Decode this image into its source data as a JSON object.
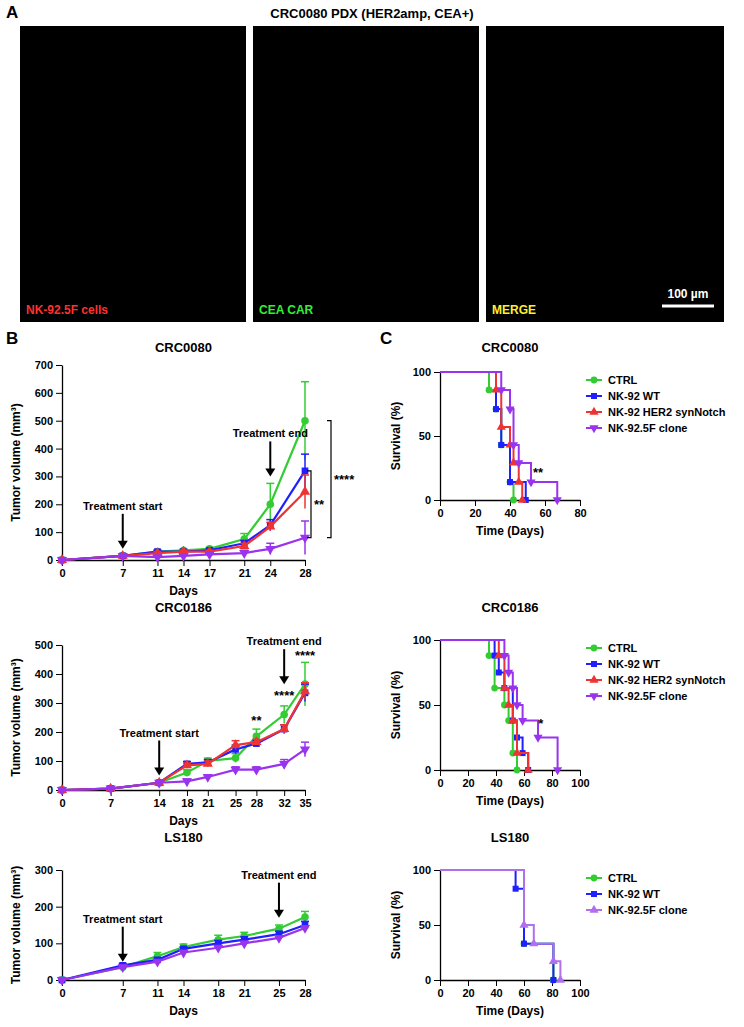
{
  "figure": {
    "panel_labels": [
      "A",
      "B",
      "C"
    ],
    "panel_a": {
      "title": "CRC0080 PDX (HER2amp, CEA+)",
      "images": [
        {
          "label": "NK-92.5F cells",
          "color": "#ff3030"
        },
        {
          "label": "CEA CAR",
          "color": "#33ee33"
        },
        {
          "label": "MERGE",
          "color": "#ffee33"
        }
      ],
      "scale_bar": "100 µm"
    }
  },
  "chart_data": [
    {
      "type": "line",
      "title": "CRC0080",
      "x_label": "Days",
      "y_label": "Tumor volume (mm³)",
      "x": [
        0,
        7,
        11,
        14,
        17,
        21,
        24,
        28
      ],
      "xlim": [
        0,
        28
      ],
      "xticks": [
        0,
        7,
        11,
        14,
        17,
        21,
        24,
        28
      ],
      "ylim": [
        0,
        700
      ],
      "yticks": [
        0,
        100,
        200,
        300,
        400,
        500,
        600,
        700
      ],
      "series": [
        {
          "color": "#33cc33",
          "marker": "circle",
          "values": [
            0,
            15,
            30,
            35,
            40,
            75,
            200,
            500
          ],
          "errors": [
            0,
            3,
            5,
            5,
            5,
            20,
            75,
            140
          ]
        },
        {
          "color": "#1f1fff",
          "marker": "square",
          "values": [
            0,
            15,
            30,
            30,
            35,
            60,
            125,
            320
          ],
          "errors": [
            0,
            3,
            5,
            5,
            5,
            10,
            20,
            60
          ]
        },
        {
          "color": "#ee3333",
          "marker": "triangle",
          "values": [
            0,
            15,
            25,
            30,
            30,
            50,
            120,
            245
          ],
          "errors": [
            0,
            3,
            5,
            5,
            5,
            10,
            15,
            60
          ]
        },
        {
          "color": "#9933ee",
          "marker": "triangle-down",
          "values": [
            0,
            15,
            10,
            15,
            20,
            25,
            40,
            80
          ],
          "errors": [
            0,
            3,
            3,
            3,
            5,
            10,
            20,
            60
          ]
        }
      ],
      "annotations": [
        {
          "type": "arrow",
          "text": "Treatment start",
          "x": 7,
          "y": 40
        },
        {
          "type": "arrow",
          "text": "Treatment end",
          "x": 24,
          "y": 300
        },
        {
          "type": "bracket",
          "text": "**",
          "y": [
            80,
            320
          ]
        },
        {
          "type": "bracket",
          "text": "****",
          "y": [
            80,
            500
          ]
        }
      ]
    },
    {
      "type": "line",
      "title": "CRC0186",
      "x_label": "Days",
      "y_label": "Tumor volume (mm³)",
      "x": [
        0,
        7,
        14,
        18,
        21,
        25,
        28,
        32,
        35
      ],
      "xlim": [
        0,
        35
      ],
      "xticks": [
        0,
        7,
        14,
        18,
        21,
        25,
        28,
        32,
        35
      ],
      "ylim": [
        0,
        500
      ],
      "yticks": [
        0,
        100,
        200,
        300,
        400,
        500
      ],
      "series": [
        {
          "color": "#33cc33",
          "marker": "circle",
          "values": [
            0,
            5,
            25,
            60,
            100,
            110,
            185,
            260,
            365
          ],
          "errors": [
            0,
            2,
            5,
            10,
            10,
            15,
            25,
            30,
            75
          ]
        },
        {
          "color": "#1f1fff",
          "marker": "square",
          "values": [
            0,
            5,
            25,
            90,
            95,
            140,
            160,
            210,
            335
          ],
          "errors": [
            0,
            2,
            5,
            8,
            10,
            15,
            10,
            15,
            30
          ]
        },
        {
          "color": "#ee3333",
          "marker": "triangle",
          "values": [
            0,
            5,
            25,
            85,
            90,
            155,
            165,
            210,
            340
          ],
          "errors": [
            0,
            2,
            5,
            8,
            10,
            15,
            10,
            15,
            30
          ]
        },
        {
          "color": "#9933ee",
          "marker": "triangle-down",
          "values": [
            0,
            5,
            25,
            30,
            45,
            70,
            70,
            90,
            140
          ],
          "errors": [
            0,
            2,
            5,
            8,
            5,
            10,
            10,
            15,
            25
          ]
        }
      ],
      "annotations": [
        {
          "type": "arrow",
          "text": "Treatment start",
          "x": 14,
          "y": 50
        },
        {
          "type": "arrow",
          "text": "Treatment end",
          "x": 32,
          "y": 365
        },
        {
          "type": "text",
          "text": "**",
          "x": 28,
          "y": 225
        },
        {
          "type": "text",
          "text": "****",
          "x": 32,
          "y": 310
        },
        {
          "type": "text",
          "text": "****",
          "x": 35,
          "y": 450
        }
      ]
    },
    {
      "type": "line",
      "title": "LS180",
      "x_label": "Days",
      "y_label": "Tumor volume (mm³)",
      "x": [
        0,
        7,
        11,
        14,
        18,
        21,
        25,
        28
      ],
      "xlim": [
        0,
        28
      ],
      "xticks": [
        0,
        7,
        11,
        14,
        18,
        21,
        25,
        28
      ],
      "ylim": [
        0,
        300
      ],
      "yticks": [
        0,
        100,
        200,
        300
      ],
      "series": [
        {
          "color": "#33cc33",
          "marker": "circle",
          "values": [
            0,
            35,
            65,
            90,
            110,
            120,
            140,
            172
          ],
          "errors": [
            0,
            5,
            10,
            8,
            12,
            10,
            10,
            15
          ]
        },
        {
          "color": "#1f1fff",
          "marker": "square",
          "values": [
            0,
            40,
            55,
            85,
            100,
            110,
            125,
            150
          ],
          "errors": [
            0,
            5,
            5,
            5,
            8,
            8,
            8,
            10
          ]
        },
        {
          "color": "#9933ee",
          "marker": "triangle-down",
          "values": [
            0,
            35,
            50,
            75,
            88,
            100,
            115,
            142
          ],
          "errors": [
            0,
            5,
            5,
            5,
            5,
            5,
            5,
            5
          ]
        }
      ],
      "annotations": [
        {
          "type": "arrow",
          "text": "Treatment start",
          "x": 7,
          "y": 50
        },
        {
          "type": "arrow",
          "text": "Treatment end",
          "x": 25,
          "y": 170
        }
      ]
    },
    {
      "type": "line",
      "line_style": "step",
      "legend": "right",
      "title": "CRC0080",
      "x_label": "Time (Days)",
      "y_label": "Survival (%)",
      "xlim": [
        0,
        80
      ],
      "xticks": [
        0,
        20,
        40,
        60,
        80
      ],
      "ylim": [
        0,
        100
      ],
      "yticks": [
        0,
        50,
        100
      ],
      "series": [
        {
          "name": "CTRL",
          "color": "#33cc33",
          "marker": "circle",
          "x": [
            0,
            28,
            32,
            35,
            40,
            42
          ],
          "values": [
            100,
            86,
            71,
            43,
            14,
            0
          ]
        },
        {
          "name": "NK-92 WT",
          "color": "#1f1fff",
          "marker": "square",
          "x": [
            0,
            32,
            35,
            40,
            49
          ],
          "values": [
            100,
            71,
            43,
            14,
            0
          ]
        },
        {
          "name": "NK-92 HER2 synNotch",
          "color": "#ee3333",
          "marker": "triangle",
          "x": [
            0,
            32,
            35,
            40,
            42,
            45,
            47
          ],
          "values": [
            100,
            86,
            57,
            43,
            29,
            14,
            0
          ]
        },
        {
          "name": "NK-92.5F clone",
          "color": "#9933ee",
          "marker": "triangle-down",
          "x": [
            0,
            35,
            40,
            42,
            45,
            52,
            67
          ],
          "values": [
            100,
            86,
            71,
            43,
            29,
            14,
            0
          ]
        }
      ],
      "annotations": [
        {
          "type": "text",
          "text": "**",
          "x": 56,
          "y": 18
        }
      ]
    },
    {
      "type": "line",
      "line_style": "step",
      "legend": "right",
      "title": "CRC0186",
      "x_label": "Time (Days)",
      "y_label": "Survival (%)",
      "xlim": [
        0,
        100
      ],
      "xticks": [
        0,
        20,
        40,
        60,
        80,
        100
      ],
      "ylim": [
        0,
        100
      ],
      "yticks": [
        0,
        50,
        100
      ],
      "series": [
        {
          "name": "CTRL",
          "color": "#33cc33",
          "marker": "circle",
          "x": [
            0,
            35,
            39,
            46,
            49,
            52,
            55
          ],
          "values": [
            100,
            88,
            63,
            50,
            38,
            13,
            0
          ]
        },
        {
          "name": "NK-92 WT",
          "color": "#1f1fff",
          "marker": "square",
          "x": [
            0,
            39,
            42,
            46,
            52,
            55,
            59,
            63
          ],
          "values": [
            100,
            88,
            75,
            63,
            38,
            25,
            13,
            0
          ]
        },
        {
          "name": "NK-92 HER2 synNotch",
          "color": "#ee3333",
          "marker": "triangle",
          "x": [
            0,
            42,
            46,
            49,
            52,
            55,
            63
          ],
          "values": [
            100,
            88,
            63,
            50,
            38,
            13,
            0
          ]
        },
        {
          "name": "NK-92.5F clone",
          "color": "#9933ee",
          "marker": "triangle-down",
          "x": [
            0,
            46,
            49,
            52,
            55,
            59,
            70,
            84
          ],
          "values": [
            100,
            88,
            75,
            63,
            50,
            38,
            25,
            0
          ]
        }
      ],
      "annotations": [
        {
          "type": "text",
          "text": "*",
          "x": 72,
          "y": 32
        }
      ]
    },
    {
      "type": "line",
      "line_style": "step",
      "legend": "right",
      "title": "LS180",
      "x_label": "Time (Days)",
      "y_label": "Survival (%)",
      "xlim": [
        0,
        100
      ],
      "xticks": [
        0,
        20,
        40,
        60,
        80,
        100
      ],
      "ylim": [
        0,
        100
      ],
      "yticks": [
        0,
        50,
        100
      ],
      "series": [
        {
          "name": "CTRL",
          "color": "#33cc33",
          "marker": "circle",
          "x": [
            0,
            60,
            81
          ],
          "values": [
            100,
            33,
            0
          ]
        },
        {
          "name": "NK-92 WT",
          "color": "#1f1fff",
          "marker": "square",
          "x": [
            0,
            54,
            60,
            81
          ],
          "values": [
            100,
            83,
            33,
            0
          ]
        },
        {
          "name": "NK-92.5F clone",
          "color": "#b070ee",
          "marker": "triangle",
          "x": [
            0,
            60,
            67,
            81,
            86
          ],
          "values": [
            100,
            50,
            33,
            17,
            0
          ]
        }
      ],
      "annotations": []
    }
  ]
}
